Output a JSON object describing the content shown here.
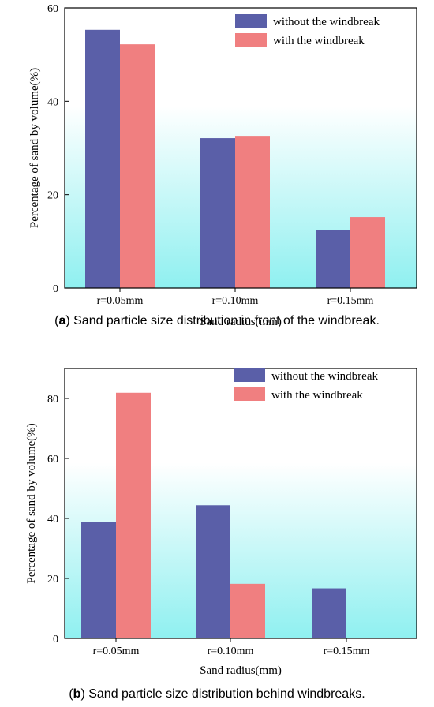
{
  "colors": {
    "without": "#5a5fa8",
    "with": "#f07f80",
    "bg_top": "#ffffff",
    "bg_bottom": "#8ff0f0"
  },
  "chart_data": [
    {
      "id": "a",
      "type": "bar",
      "categories": [
        "r=0.05mm",
        "r=0.10mm",
        "r=0.15mm"
      ],
      "series": [
        {
          "name": "without the windbreak",
          "values": [
            55.3,
            32.1,
            12.5
          ]
        },
        {
          "name": "with the windbreak",
          "values": [
            52.2,
            32.6,
            15.2
          ]
        }
      ],
      "ylim": [
        0,
        60
      ],
      "yticks": [
        0,
        20,
        40,
        60
      ],
      "xlabel": "Sand radius(mm)",
      "ylabel": "Percentage of sand by volume(%)",
      "legend": "top-right",
      "caption_letter": "a",
      "caption_text": " Sand particle size distribution in front of the windbreak."
    },
    {
      "id": "b",
      "type": "bar",
      "categories": [
        "r=0.05mm",
        "r=0.10mm",
        "r=0.15mm"
      ],
      "series": [
        {
          "name": "without the windbreak",
          "values": [
            38.9,
            44.4,
            16.7
          ]
        },
        {
          "name": "with the windbreak",
          "values": [
            81.9,
            18.2,
            0
          ]
        }
      ],
      "ylim": [
        0,
        90
      ],
      "yticks": [
        0,
        20,
        40,
        60,
        80
      ],
      "xlabel": "Sand radius(mm)",
      "ylabel": "Percentage of sand by volume(%)",
      "legend": "top-right",
      "caption_letter": "b",
      "caption_text": " Sand particle size distribution behind windbreaks."
    }
  ]
}
